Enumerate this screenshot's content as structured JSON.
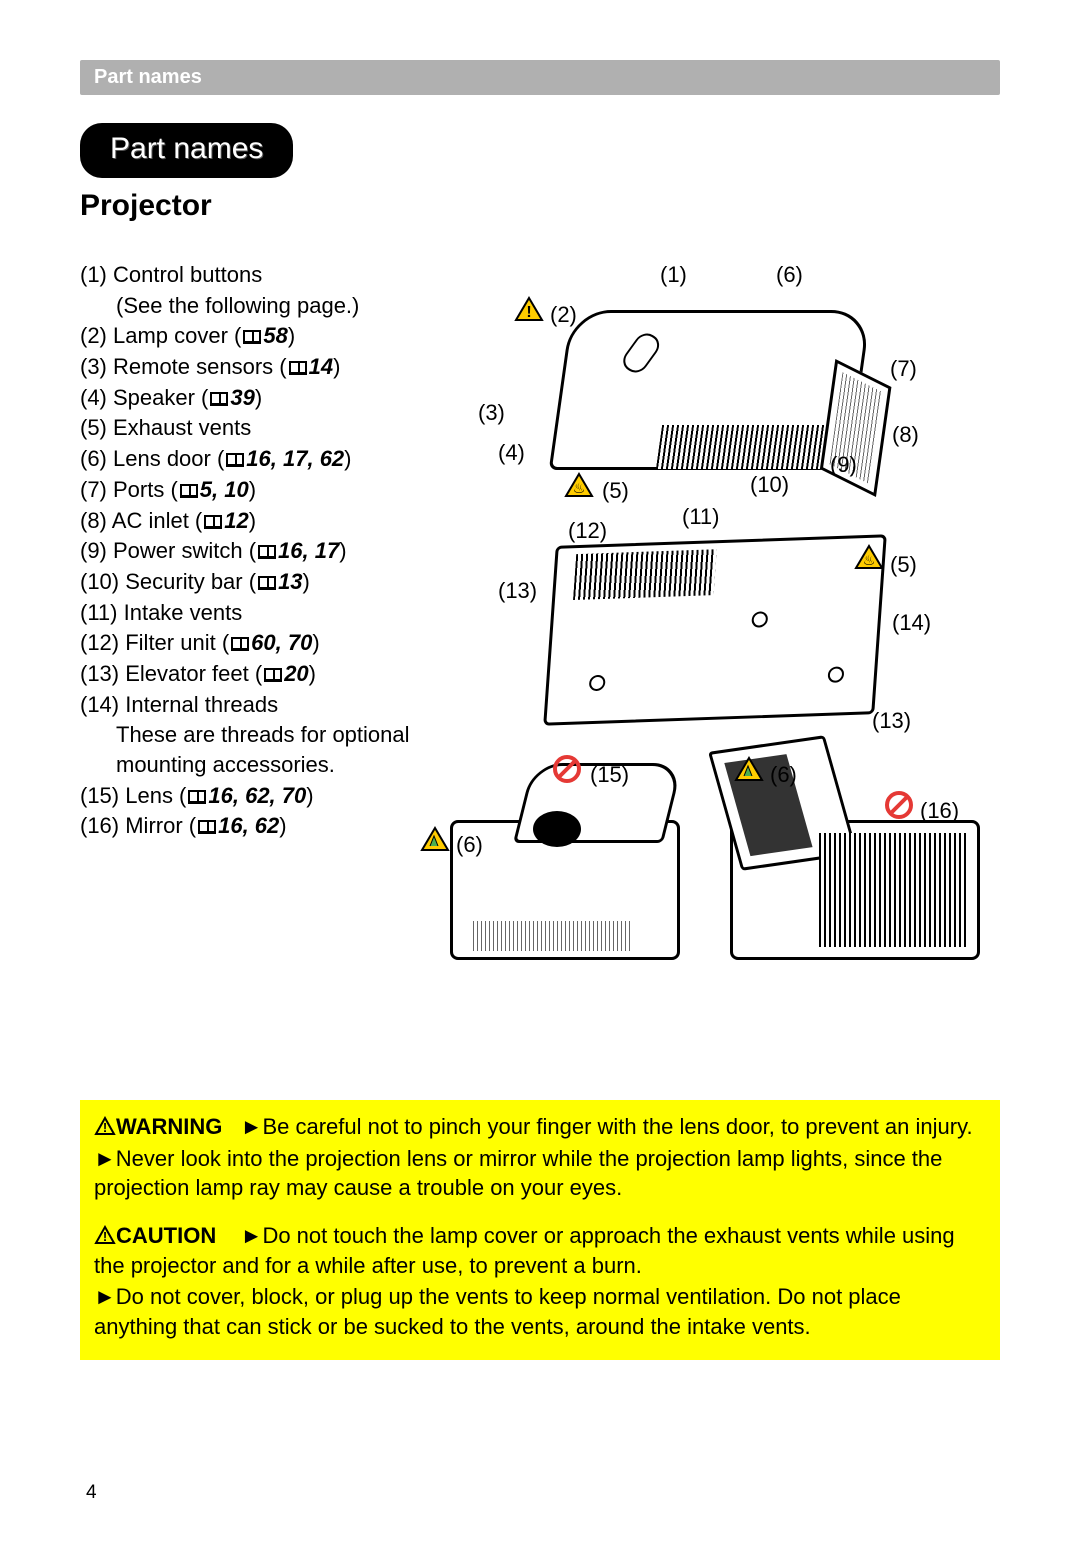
{
  "header": {
    "section_bar": "Part names",
    "pill": "Part names",
    "subtitle": "Projector"
  },
  "parts": [
    {
      "n": "(1)",
      "label": "Control buttons",
      "ref": null,
      "sub": "(See the following page.)"
    },
    {
      "n": "(2)",
      "label": "Lamp cover",
      "ref": "58"
    },
    {
      "n": "(3)",
      "label": "Remote sensors",
      "ref": "14"
    },
    {
      "n": "(4)",
      "label": "Speaker",
      "ref": "39"
    },
    {
      "n": "(5)",
      "label": "Exhaust vents",
      "ref": null
    },
    {
      "n": "(6)",
      "label": "Lens door",
      "ref": "16, 17, 62"
    },
    {
      "n": "(7)",
      "label": "Ports",
      "ref": "5, 10"
    },
    {
      "n": "(8)",
      "label": "AC inlet",
      "ref": "12"
    },
    {
      "n": "(9)",
      "label": "Power switch",
      "ref": "16, 17"
    },
    {
      "n": "(10)",
      "label": "Security bar",
      "ref": "13"
    },
    {
      "n": "(11)",
      "label": "Intake vents",
      "ref": null
    },
    {
      "n": "(12)",
      "label": "Filter unit",
      "ref": "60, 70"
    },
    {
      "n": "(13)",
      "label": "Elevator feet",
      "ref": "20"
    },
    {
      "n": "(14)",
      "label": "Internal threads",
      "ref": null,
      "sub": "These are threads for optional mounting accessories."
    },
    {
      "n": "(15)",
      "label": "Lens",
      "ref": "16, 62, 70"
    },
    {
      "n": "(16)",
      "label": "Mirror",
      "ref": "16, 62"
    }
  ],
  "diagram": {
    "callouts_top": {
      "c1": "(1)",
      "c2": "(2)",
      "c3": "(3)",
      "c4": "(4)",
      "c5": "(5)",
      "c6": "(6)",
      "c7": "(7)",
      "c8": "(8)",
      "c9": "(9)",
      "c10": "(10)",
      "c11": "(11)",
      "c12": "(12)",
      "c13a": "(13)",
      "c13b": "(13)",
      "c14": "(14)",
      "c5b": "(5)"
    },
    "callouts_bottom": {
      "c15": "(15)",
      "c6a": "(6)",
      "c6b": "(6)",
      "c16": "(16)"
    }
  },
  "icons": {
    "warn_yellow": {
      "fill": "#ffcc00",
      "stroke": "#000000"
    },
    "warn_green": {
      "fill": "#4caf50",
      "stroke": "#000000"
    },
    "prohibit": {
      "stroke": "#e53935"
    },
    "heat_glyph": "♨"
  },
  "warning": {
    "label": "WARNING",
    "text1": "►Be careful not to pinch your finger with the lens door, to prevent an injury.",
    "text2": "►Never look into the projection lens or mirror while the projection lamp lights, since the projection lamp ray may cause a trouble on your eyes."
  },
  "caution": {
    "label": "CAUTION",
    "text1": "►Do not touch the lamp cover or approach the exhaust vents while using the projector and for a while after use, to prevent a burn.",
    "text2": "►Do not cover, block, or plug up the vents to keep normal ventilation. Do not place anything that can stick or be sucked to the vents, around the intake vents."
  },
  "page_number": "4",
  "colors": {
    "highlight": "#ffff00",
    "bar": "#b0b0b0",
    "text": "#000000"
  }
}
